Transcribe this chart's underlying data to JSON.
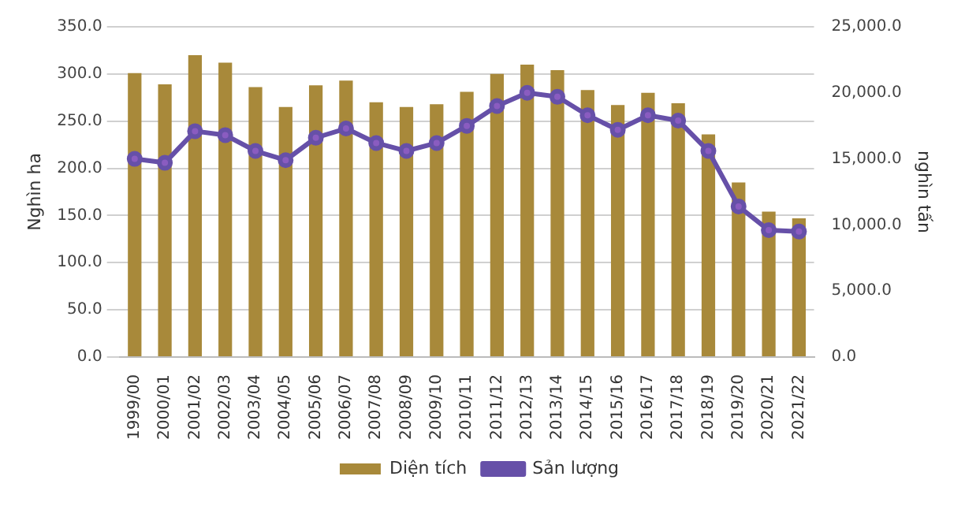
{
  "chart_data": {
    "type": "bar",
    "ylabel": "Nghìn ha",
    "y2label": "nghìn tấn",
    "categories": [
      "1999/00",
      "2000/01",
      "2001/02",
      "2002/03",
      "2003/04",
      "2004/05",
      "2005/06",
      "2006/07",
      "2007/08",
      "2008/09",
      "2009/10",
      "2010/11",
      "2011/12",
      "2012/13",
      "2013/14",
      "2014/15",
      "2015/16",
      "2016/17",
      "2017/18",
      "2018/19",
      "2019/20",
      "2020/21",
      "2021/22"
    ],
    "series": [
      {
        "name": "Diện tích",
        "color": "#a8893a",
        "values": [
          301,
          289,
          320,
          312,
          286,
          265,
          288,
          293,
          270,
          265,
          268,
          281,
          300,
          310,
          304,
          283,
          267,
          280,
          269,
          236,
          185,
          154,
          147
        ]
      },
      {
        "name": "Sản lượng",
        "type": "line",
        "axis": "y2",
        "color": "#6650a8",
        "values": [
          15000,
          14700,
          17100,
          16800,
          15600,
          14900,
          16600,
          17300,
          16200,
          15600,
          16200,
          17500,
          19000,
          20000,
          19700,
          18300,
          17200,
          18300,
          17900,
          15600,
          11400,
          9600,
          9500
        ]
      }
    ],
    "ylim": [
      0,
      350
    ],
    "yticks": [
      {
        "value": 0,
        "label": "0.0"
      },
      {
        "value": 50,
        "label": "50.0"
      },
      {
        "value": 100,
        "label": "100.0"
      },
      {
        "value": 150,
        "label": "150.0"
      },
      {
        "value": 200,
        "label": "200.0"
      },
      {
        "value": 250,
        "label": "250.0"
      },
      {
        "value": 300,
        "label": "300.0"
      },
      {
        "value": 350,
        "label": "350.0"
      }
    ],
    "y2lim": [
      0,
      25000
    ],
    "y2ticks": [
      {
        "value": 0,
        "label": "0.0"
      },
      {
        "value": 5000,
        "label": "5,000.0"
      },
      {
        "value": 10000,
        "label": "10,000.0"
      },
      {
        "value": 15000,
        "label": "15,000.0"
      },
      {
        "value": 20000,
        "label": "20,000.0"
      },
      {
        "value": 25000,
        "label": "25,000.0"
      }
    ],
    "grid": "y",
    "legend": "bottom",
    "marker": "circle"
  }
}
